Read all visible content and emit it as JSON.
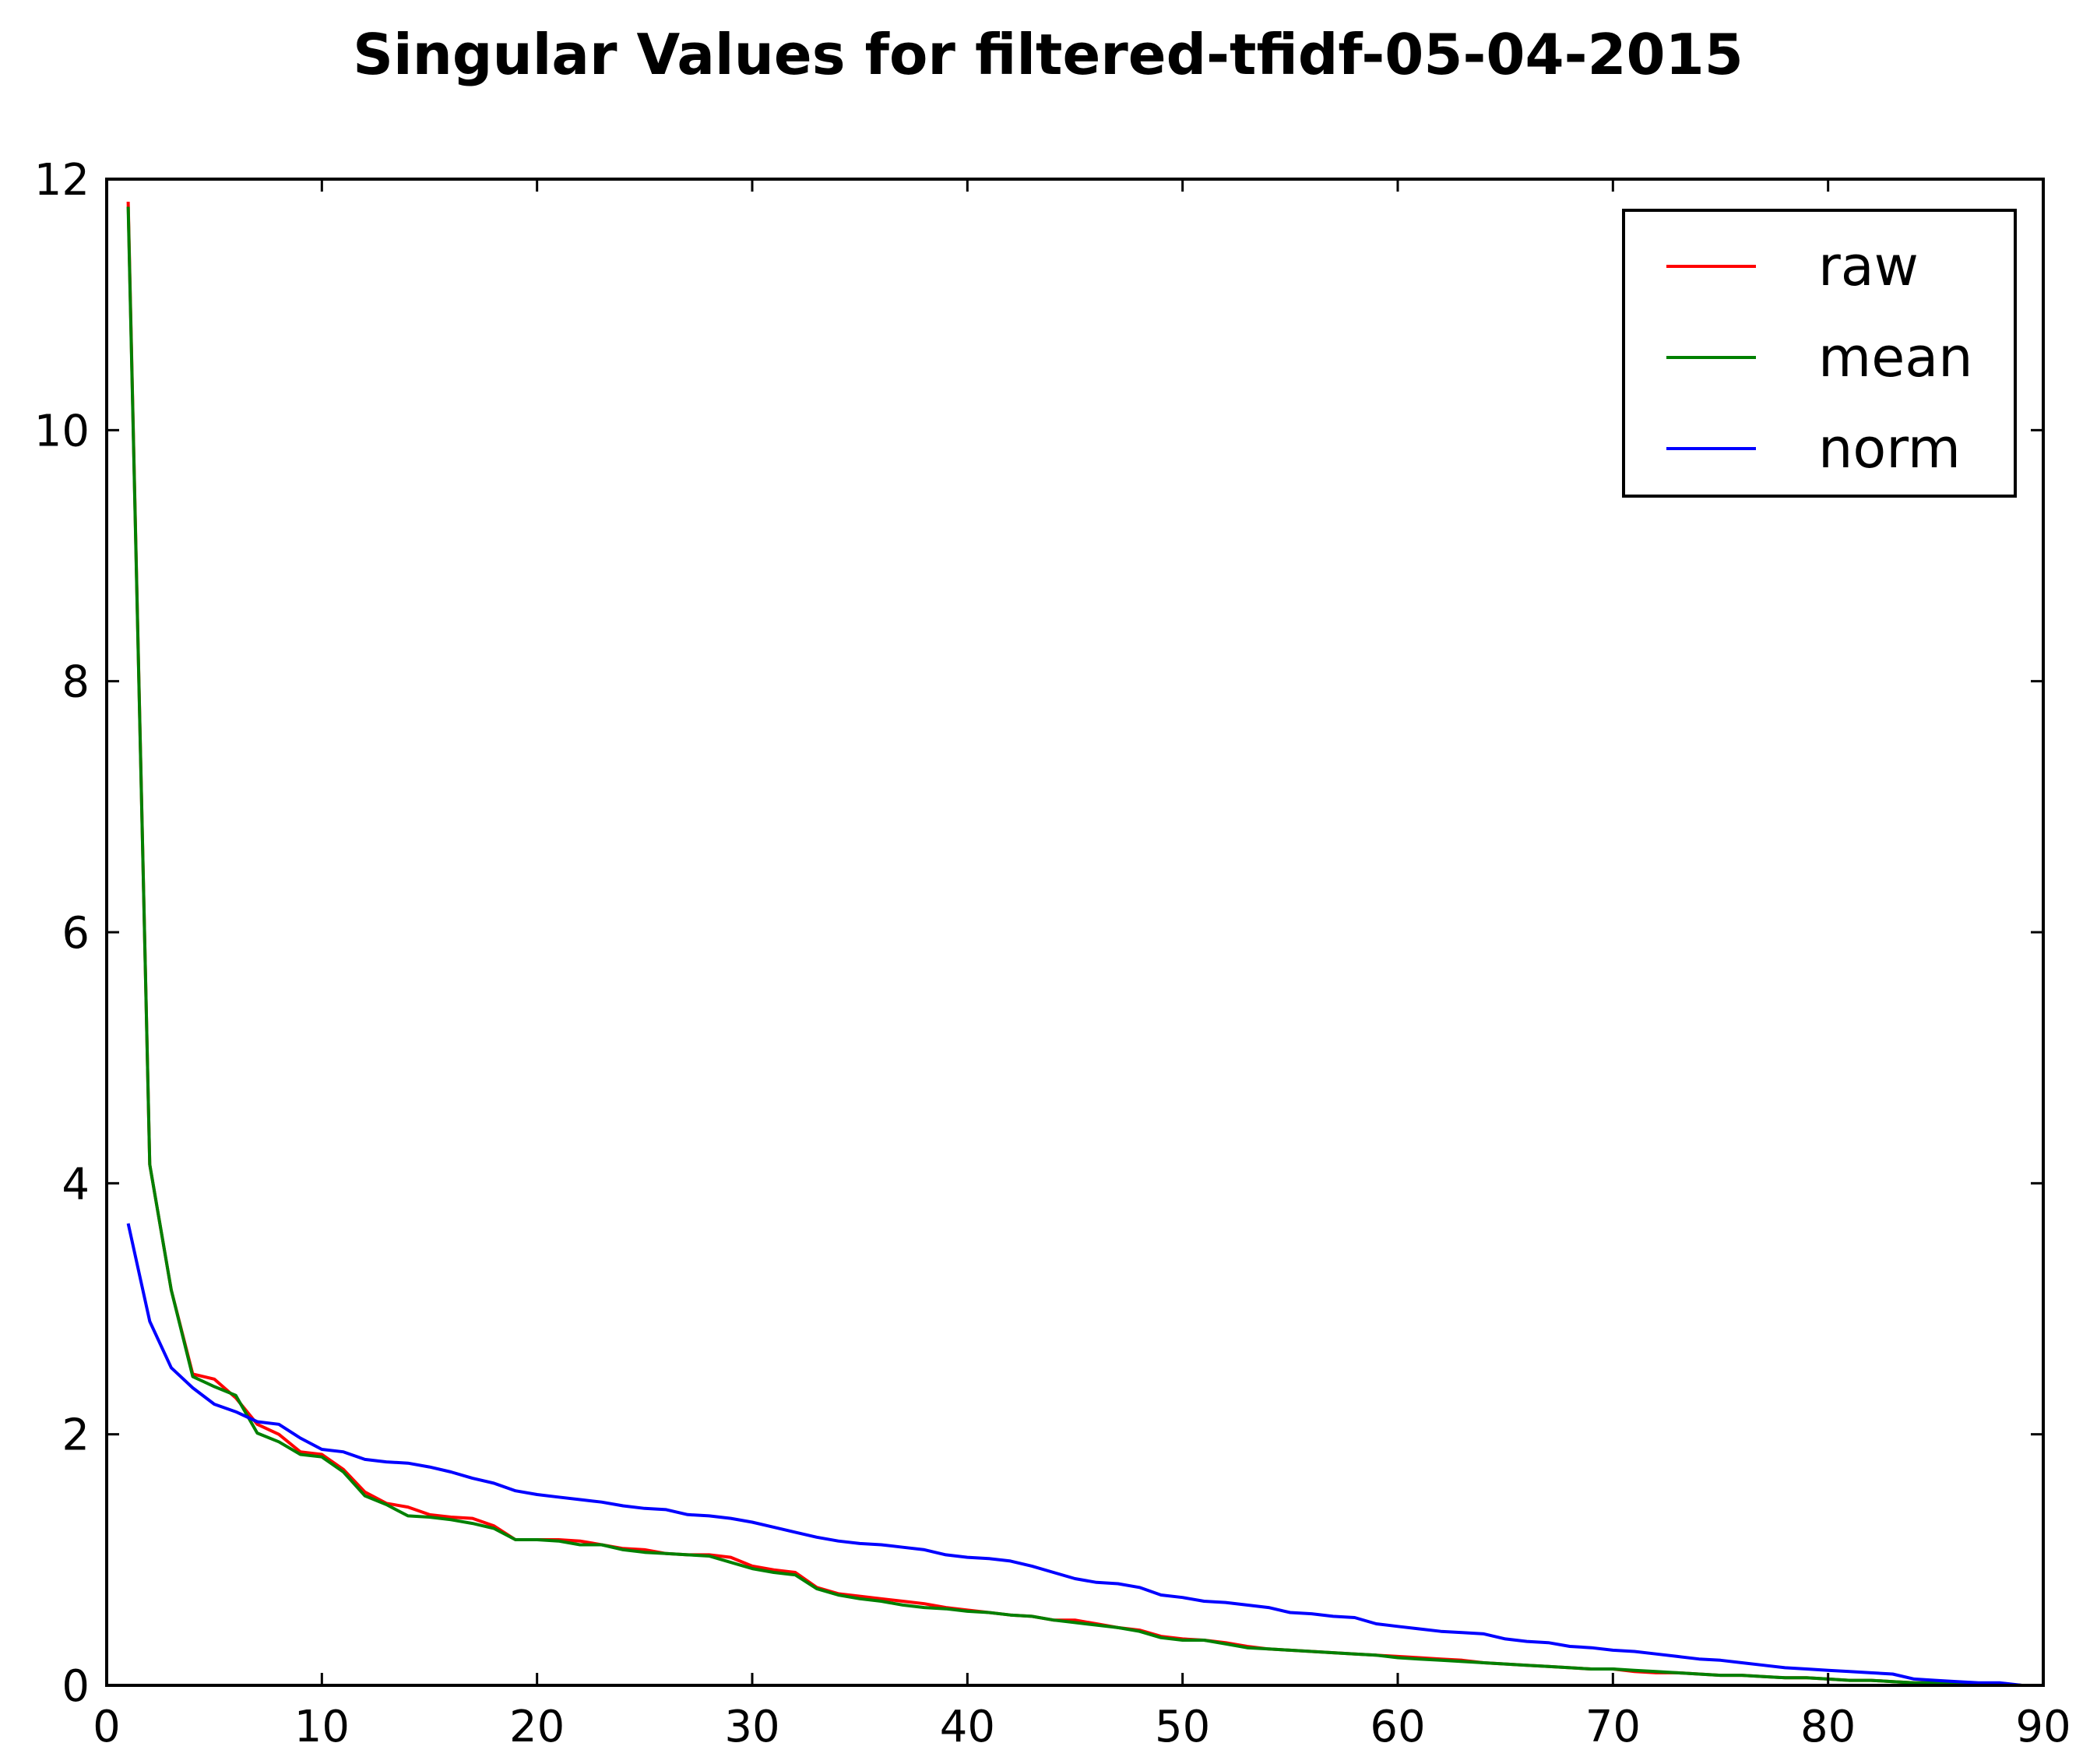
{
  "chart_data": {
    "type": "line",
    "title": "Singular Values for filtered-tfidf-05-04-2015",
    "xlabel": "",
    "ylabel": "",
    "xlim": [
      0,
      90
    ],
    "ylim": [
      0,
      12
    ],
    "xticks": [
      0,
      10,
      20,
      30,
      40,
      50,
      60,
      70,
      80,
      90
    ],
    "yticks": [
      0,
      2,
      4,
      6,
      8,
      10,
      12
    ],
    "grid": false,
    "legend_position": "top-right",
    "x": [
      1,
      2,
      3,
      4,
      5,
      6,
      7,
      8,
      9,
      10,
      11,
      12,
      13,
      14,
      15,
      16,
      17,
      18,
      19,
      20,
      21,
      22,
      23,
      24,
      25,
      26,
      27,
      28,
      29,
      30,
      31,
      32,
      33,
      34,
      35,
      36,
      37,
      38,
      39,
      40,
      41,
      42,
      43,
      44,
      45,
      46,
      47,
      48,
      49,
      50,
      51,
      52,
      53,
      54,
      55,
      56,
      57,
      58,
      59,
      60,
      61,
      62,
      63,
      64,
      65,
      66,
      67,
      68,
      69,
      70,
      71,
      72,
      73,
      74,
      75,
      76,
      77,
      78,
      79,
      80,
      81,
      82,
      83,
      84,
      85,
      86,
      87,
      88,
      89
    ],
    "series": [
      {
        "name": "raw",
        "color": "#ff0000",
        "values": [
          11.82,
          4.15,
          3.15,
          2.48,
          2.44,
          2.29,
          2.08,
          2.0,
          1.86,
          1.84,
          1.72,
          1.54,
          1.45,
          1.42,
          1.36,
          1.34,
          1.33,
          1.27,
          1.16,
          1.16,
          1.16,
          1.15,
          1.12,
          1.09,
          1.08,
          1.05,
          1.04,
          1.04,
          1.02,
          0.95,
          0.92,
          0.9,
          0.78,
          0.73,
          0.71,
          0.69,
          0.67,
          0.65,
          0.62,
          0.6,
          0.58,
          0.56,
          0.55,
          0.52,
          0.52,
          0.49,
          0.46,
          0.44,
          0.39,
          0.37,
          0.36,
          0.34,
          0.31,
          0.29,
          0.28,
          0.27,
          0.26,
          0.25,
          0.24,
          0.23,
          0.22,
          0.21,
          0.2,
          0.18,
          0.17,
          0.16,
          0.15,
          0.14,
          0.13,
          0.13,
          0.11,
          0.1,
          0.1,
          0.09,
          0.08,
          0.08,
          0.07,
          0.06,
          0.06,
          0.05,
          0.04,
          0.04,
          0.03,
          0.02,
          0.02,
          0.01,
          0.01,
          0.01,
          0.0
        ]
      },
      {
        "name": "mean",
        "color": "#008000",
        "values": [
          11.78,
          4.15,
          3.15,
          2.46,
          2.38,
          2.31,
          2.01,
          1.94,
          1.84,
          1.82,
          1.7,
          1.51,
          1.44,
          1.35,
          1.34,
          1.32,
          1.29,
          1.25,
          1.16,
          1.16,
          1.15,
          1.12,
          1.12,
          1.08,
          1.06,
          1.05,
          1.04,
          1.03,
          0.98,
          0.93,
          0.9,
          0.88,
          0.77,
          0.72,
          0.69,
          0.67,
          0.64,
          0.62,
          0.61,
          0.59,
          0.58,
          0.56,
          0.55,
          0.52,
          0.5,
          0.48,
          0.46,
          0.43,
          0.38,
          0.36,
          0.36,
          0.33,
          0.3,
          0.29,
          0.28,
          0.27,
          0.26,
          0.25,
          0.24,
          0.22,
          0.21,
          0.2,
          0.19,
          0.18,
          0.17,
          0.16,
          0.15,
          0.14,
          0.13,
          0.13,
          0.12,
          0.11,
          0.1,
          0.09,
          0.08,
          0.08,
          0.07,
          0.06,
          0.06,
          0.05,
          0.04,
          0.04,
          0.03,
          0.02,
          0.02,
          0.01,
          0.01,
          0.01,
          0.0
        ]
      },
      {
        "name": "norm",
        "color": "#0000ff",
        "values": [
          3.68,
          2.9,
          2.53,
          2.37,
          2.24,
          2.18,
          2.1,
          2.08,
          1.97,
          1.88,
          1.86,
          1.8,
          1.78,
          1.77,
          1.74,
          1.7,
          1.65,
          1.61,
          1.55,
          1.52,
          1.5,
          1.48,
          1.46,
          1.43,
          1.41,
          1.4,
          1.36,
          1.35,
          1.33,
          1.3,
          1.26,
          1.22,
          1.18,
          1.15,
          1.13,
          1.12,
          1.1,
          1.08,
          1.04,
          1.02,
          1.01,
          0.99,
          0.95,
          0.9,
          0.85,
          0.82,
          0.81,
          0.78,
          0.72,
          0.7,
          0.67,
          0.66,
          0.64,
          0.62,
          0.58,
          0.57,
          0.55,
          0.54,
          0.49,
          0.47,
          0.45,
          0.43,
          0.42,
          0.41,
          0.37,
          0.35,
          0.34,
          0.31,
          0.3,
          0.28,
          0.27,
          0.25,
          0.23,
          0.21,
          0.2,
          0.18,
          0.16,
          0.14,
          0.13,
          0.12,
          0.11,
          0.1,
          0.09,
          0.05,
          0.04,
          0.03,
          0.02,
          0.02,
          0.0
        ]
      }
    ]
  }
}
